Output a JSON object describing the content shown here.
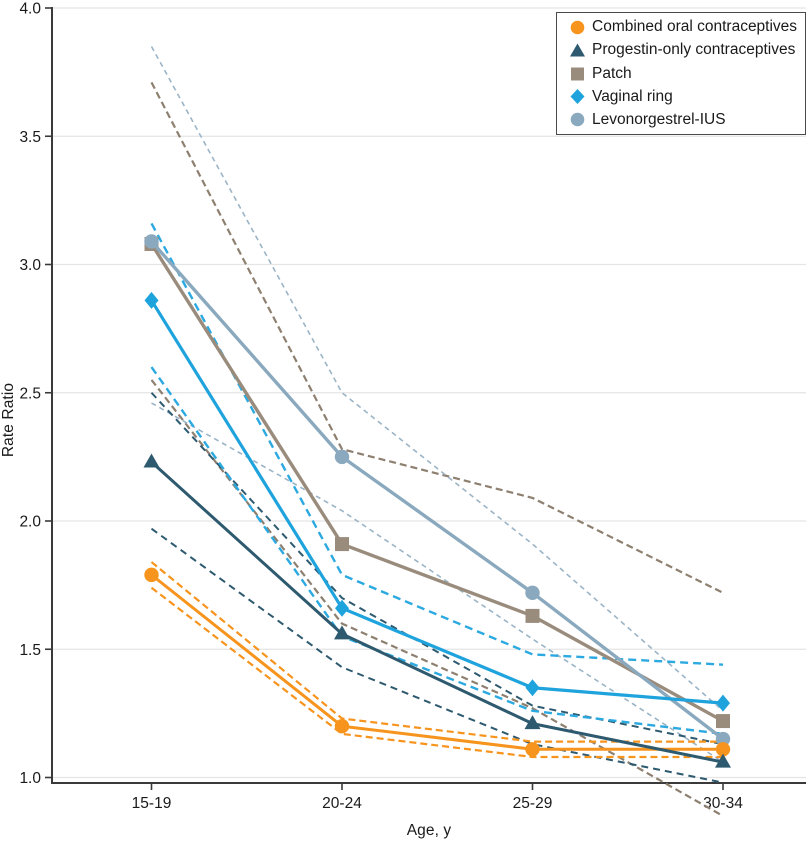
{
  "figure": {
    "y_axis_title": "Rate Ratio",
    "x_axis_title": "Age, y",
    "axis_color": "#3a3a3a",
    "grid_color": "#e5e5e5",
    "text_color": "#1a1a1a",
    "legend_border_color": "#4a4a4a"
  },
  "chart_data": {
    "type": "line",
    "title": "",
    "xlabel": "Age, y",
    "ylabel": "Rate Ratio",
    "categories": [
      "15-19",
      "20-24",
      "25-29",
      "30-34"
    ],
    "ylim": [
      1.0,
      4.0
    ],
    "yticks": [
      4.0,
      3.5,
      3.0,
      2.5,
      2.0,
      1.5,
      1.0
    ],
    "ytick_labels": [
      "4.0",
      "3.5",
      "3.0",
      "2.5",
      "2.0",
      "1.5",
      "1.0"
    ],
    "grid": true,
    "legend_position": "top-right",
    "ci_style": "dashed",
    "series": [
      {
        "name": "Combined oral contraceptives",
        "marker": "circle",
        "color": "#F7941E",
        "ci_color": "#F7941E",
        "values": [
          1.79,
          1.2,
          1.11,
          1.11
        ],
        "ci_upper": [
          1.84,
          1.23,
          1.14,
          1.14
        ],
        "ci_lower": [
          1.74,
          1.17,
          1.08,
          1.08
        ]
      },
      {
        "name": "Progestin-only contraceptives",
        "marker": "triangle",
        "color": "#2E5A70",
        "ci_color": "#2E5A70",
        "values": [
          2.23,
          1.56,
          1.21,
          1.06
        ],
        "ci_upper": [
          2.5,
          1.7,
          1.28,
          1.13
        ],
        "ci_lower": [
          1.97,
          1.43,
          1.13,
          0.98
        ]
      },
      {
        "name": "Patch",
        "marker": "square",
        "color": "#9A8C7C",
        "ci_color": "#8E8070",
        "values": [
          3.08,
          1.91,
          1.63,
          1.22
        ],
        "ci_upper": [
          3.71,
          2.28,
          2.09,
          1.72
        ],
        "ci_lower": [
          2.55,
          1.6,
          1.27,
          0.85
        ]
      },
      {
        "name": "Vaginal ring",
        "marker": "diamond",
        "color": "#1FA3DD",
        "ci_color": "#2BA9E0",
        "values": [
          2.86,
          1.66,
          1.35,
          1.29
        ],
        "ci_upper": [
          3.16,
          1.79,
          1.48,
          1.44
        ],
        "ci_lower": [
          2.6,
          1.55,
          1.26,
          1.17
        ]
      },
      {
        "name": "Levonorgestrel-IUS",
        "marker": "circle",
        "color": "#8AA9BE",
        "ci_color": "#9BB4C6",
        "values": [
          3.09,
          2.25,
          1.72,
          1.15
        ],
        "ci_upper": [
          3.85,
          2.5,
          1.91,
          1.26
        ],
        "ci_lower": [
          2.46,
          2.04,
          1.54,
          1.06
        ]
      }
    ]
  }
}
